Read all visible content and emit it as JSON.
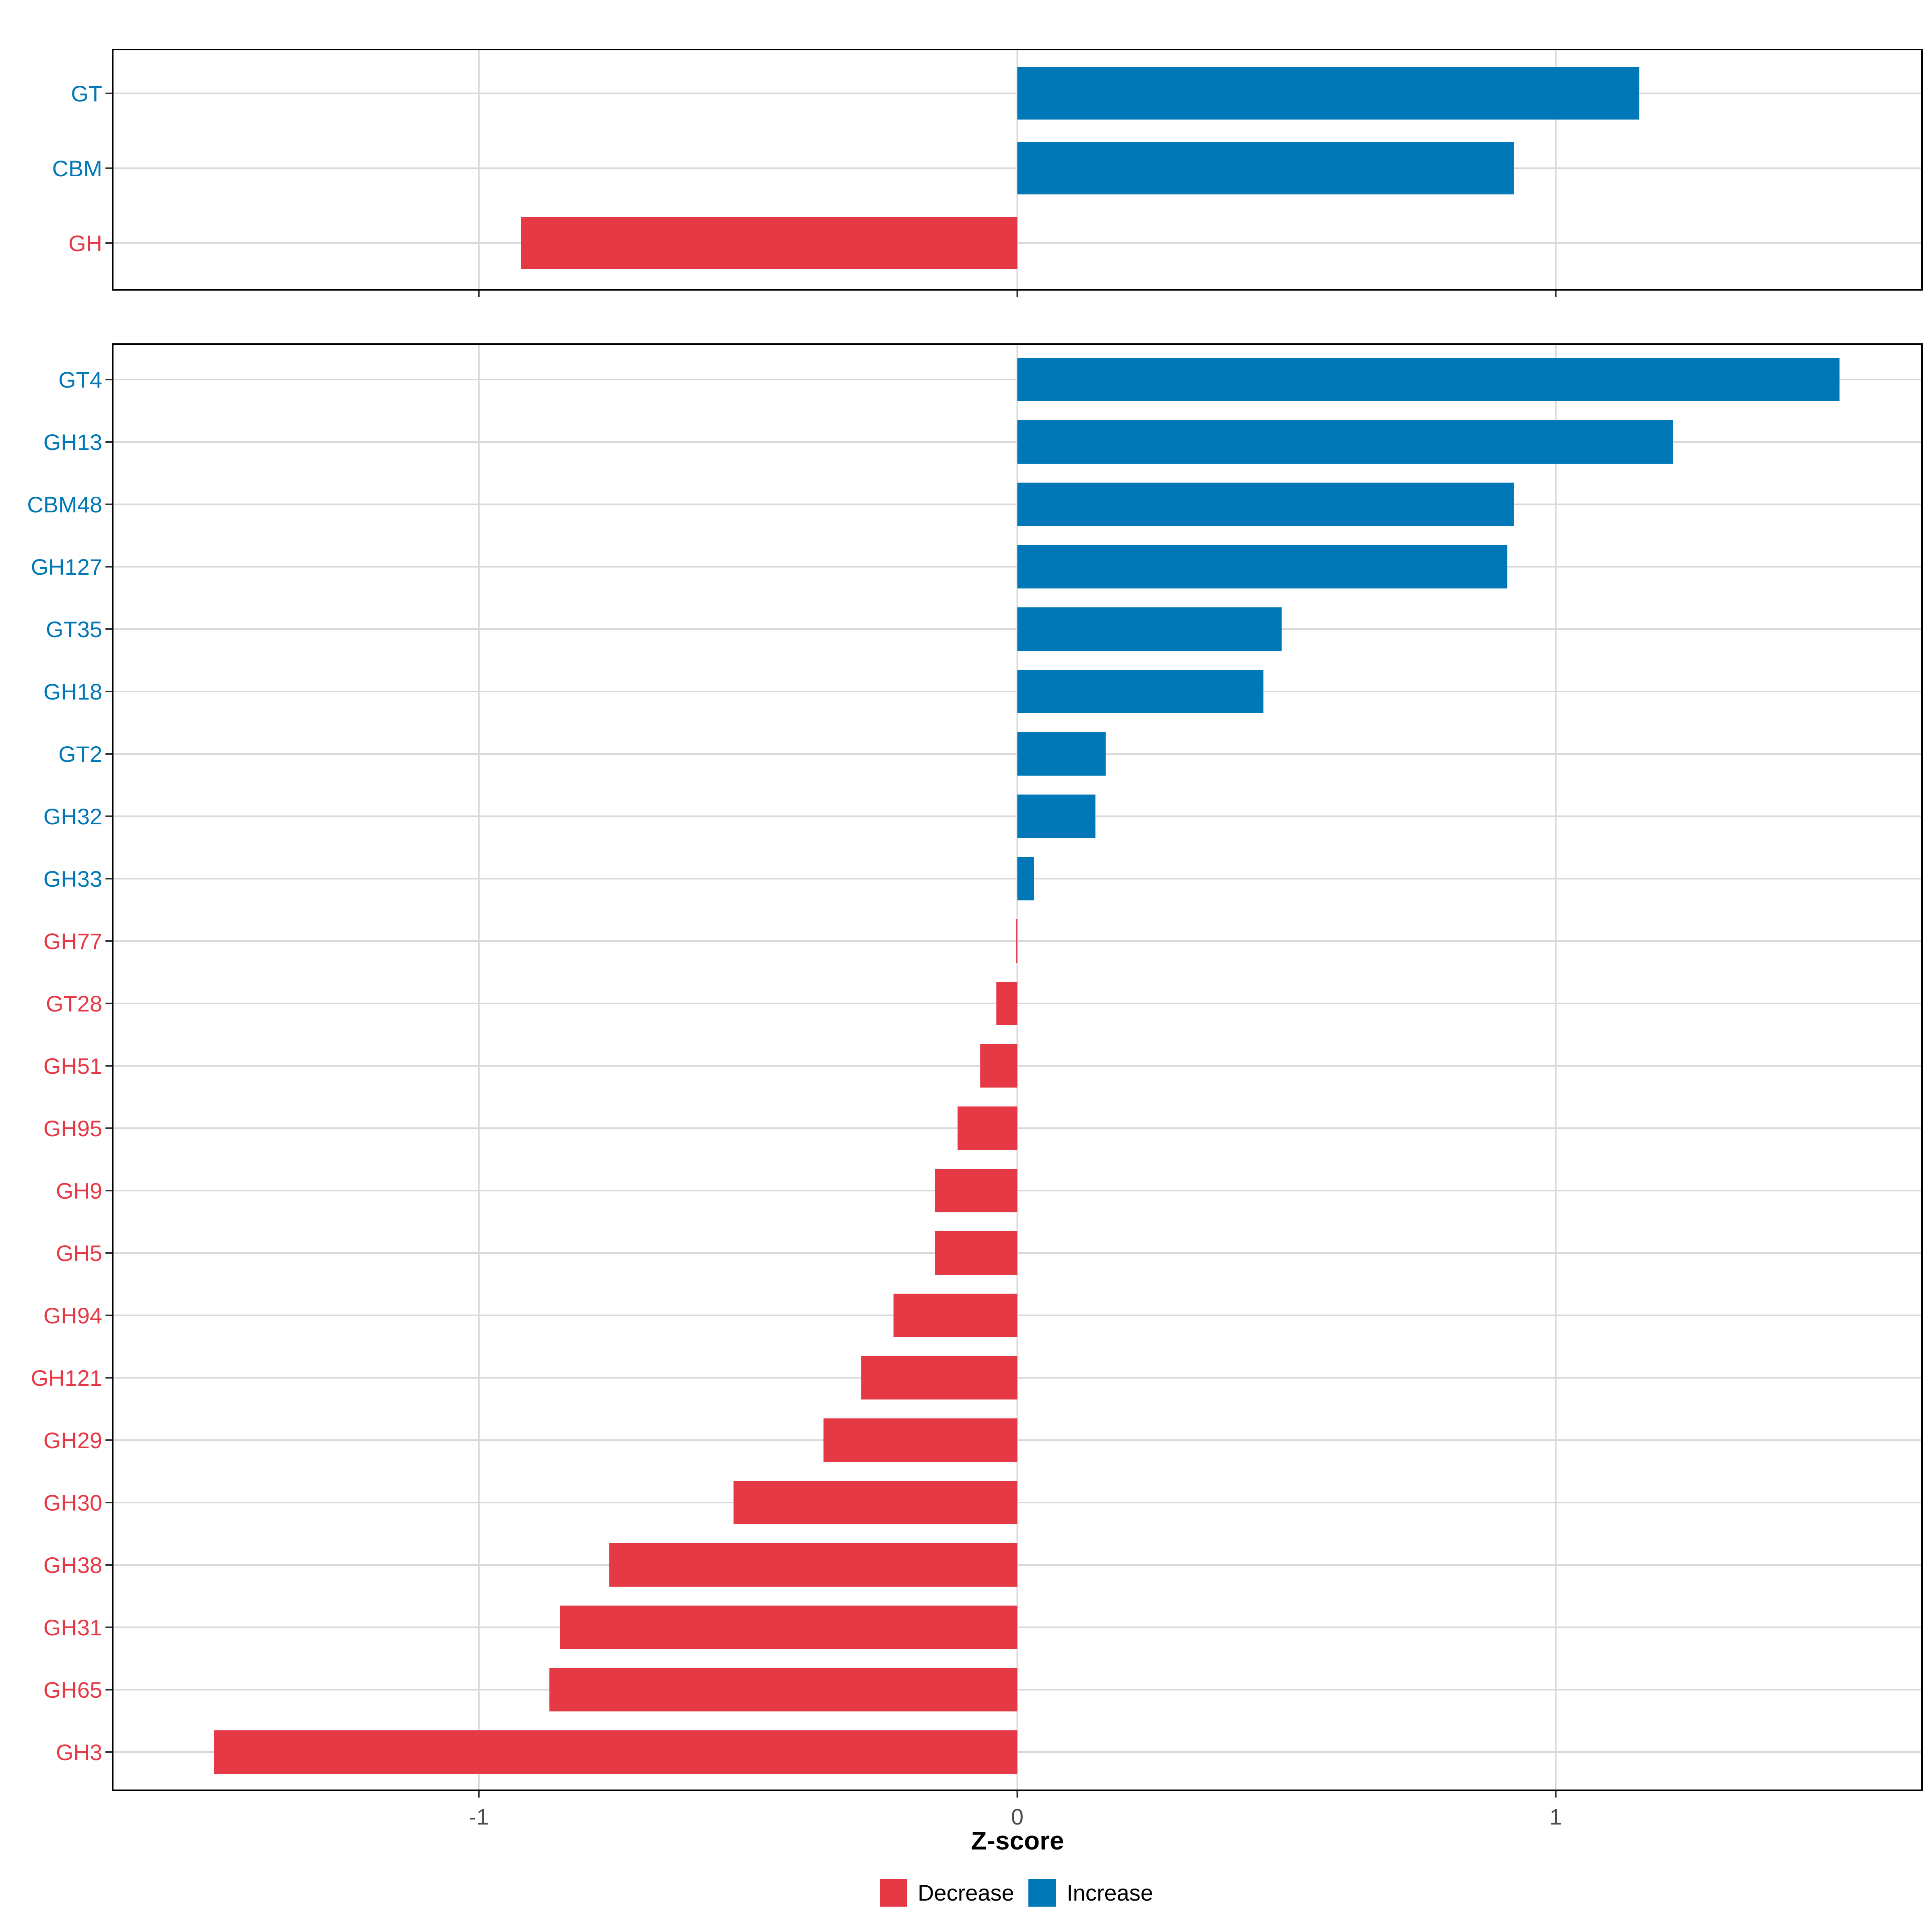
{
  "colors": {
    "decrease": "#E63946",
    "increase": "#0077B6",
    "grid": "#D9D9D9",
    "axis": "#333333",
    "frame": "#000000"
  },
  "chart_data": [
    {
      "type": "bar",
      "orientation": "horizontal",
      "panel": "top",
      "categories": [
        "GT",
        "CBM",
        "GH"
      ],
      "values": [
        1.155,
        0.922,
        -0.922
      ],
      "direction": [
        "Increase",
        "Increase",
        "Decrease"
      ],
      "xlim": [
        -1.68,
        1.68
      ],
      "xticks": [
        -1,
        0,
        1
      ],
      "grid": true
    },
    {
      "type": "bar",
      "orientation": "horizontal",
      "panel": "bottom",
      "categories": [
        "GT4",
        "GH13",
        "CBM48",
        "GH127",
        "GT35",
        "GH18",
        "GT2",
        "GH32",
        "GH33",
        "GH77",
        "GT28",
        "GH51",
        "GH95",
        "GH9",
        "GH5",
        "GH94",
        "GH121",
        "GH29",
        "GH30",
        "GH38",
        "GH31",
        "GH65",
        "GH3"
      ],
      "values": [
        1.527,
        1.218,
        0.922,
        0.91,
        0.491,
        0.457,
        0.164,
        0.145,
        0.031,
        -0.002,
        -0.039,
        -0.069,
        -0.111,
        -0.153,
        -0.153,
        -0.23,
        -0.29,
        -0.36,
        -0.527,
        -0.758,
        -0.849,
        -0.869,
        -1.492
      ],
      "direction": [
        "Increase",
        "Increase",
        "Increase",
        "Increase",
        "Increase",
        "Increase",
        "Increase",
        "Increase",
        "Increase",
        "Decrease",
        "Decrease",
        "Decrease",
        "Decrease",
        "Decrease",
        "Decrease",
        "Decrease",
        "Decrease",
        "Decrease",
        "Decrease",
        "Decrease",
        "Decrease",
        "Decrease",
        "Decrease"
      ],
      "xlim": [
        -1.68,
        1.68
      ],
      "xticks": [
        -1,
        0,
        1
      ],
      "xticklabels": [
        "-1",
        "0",
        "1"
      ],
      "xlabel": "Z-score",
      "grid": true
    }
  ],
  "legend": {
    "position": "bottom",
    "items": [
      {
        "label": "Decrease",
        "key": "decrease"
      },
      {
        "label": "Increase",
        "key": "increase"
      }
    ]
  }
}
